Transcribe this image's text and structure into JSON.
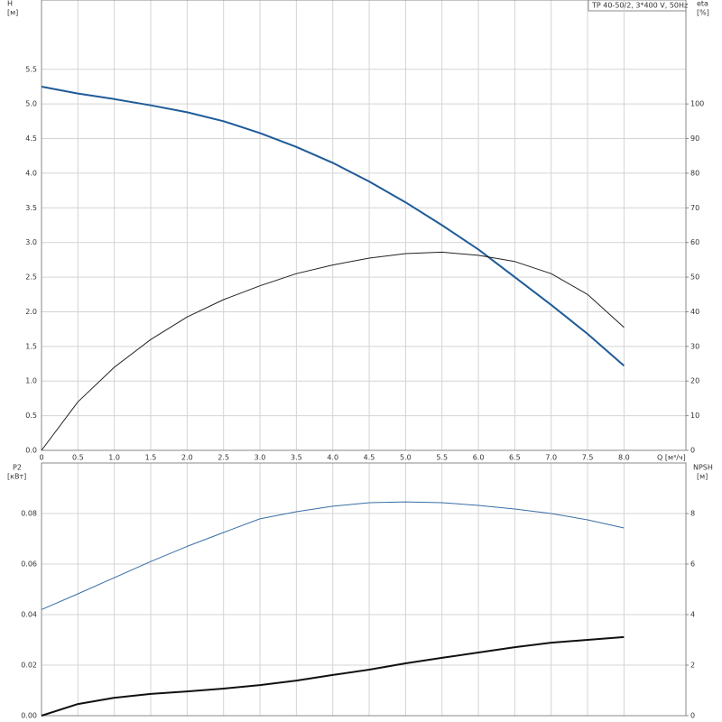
{
  "chart_data": [
    {
      "type": "line",
      "title": "TP 40-50/2, 3*400 V, 50Hz",
      "x_label": "Q [м³/ч]",
      "y_label": "H",
      "y_unit": "[м]",
      "y2_label": "eta",
      "y2_unit": "[%]",
      "x": [
        0,
        0.5,
        1.0,
        1.5,
        2.0,
        2.5,
        3.0,
        3.5,
        4.0,
        4.5,
        5.0,
        5.5,
        6.0,
        6.5,
        7.0,
        7.5,
        8.0
      ],
      "series": [
        {
          "color": "#1f5b98",
          "width": 2,
          "values": [
            5.25,
            5.15,
            5.07,
            4.98,
            4.88,
            4.75,
            4.58,
            4.38,
            4.15,
            3.88,
            3.58,
            3.25,
            2.9,
            2.5,
            2.1,
            1.68,
            1.22
          ]
        },
        {
          "color": "#222222",
          "width": 1,
          "axis": "y2",
          "values": [
            0,
            14,
            24,
            32,
            38.5,
            43.5,
            47.5,
            51,
            53.5,
            55.5,
            56.8,
            57.2,
            56.3,
            54.5,
            51,
            45,
            35.5
          ]
        }
      ],
      "xlim": [
        0,
        8.85
      ],
      "xticks": [
        0,
        0.5,
        {
          "value": 1,
          "label": "1.0"
        },
        1.5,
        {
          "value": 2,
          "label": "2.0"
        },
        2.5,
        {
          "value": 3,
          "label": "3.0"
        },
        3.5,
        {
          "value": 4,
          "label": "4.0"
        },
        4.5,
        {
          "value": 5,
          "label": "5.0"
        },
        5.5,
        {
          "value": 6,
          "label": "6.0"
        },
        6.5,
        {
          "value": 7,
          "label": "7.0"
        },
        7.5,
        {
          "value": 8,
          "label": "8.0"
        }
      ],
      "ylim": [
        0,
        6.5
      ],
      "yticks": [
        {
          "value": 0,
          "label": "0.0"
        },
        0.5,
        {
          "value": 1,
          "label": "1.0"
        },
        1.5,
        {
          "value": 2,
          "label": "2.0"
        },
        2.5,
        {
          "value": 3,
          "label": "3.0"
        },
        3.5,
        {
          "value": 4,
          "label": "4.0"
        },
        4.5,
        {
          "value": 5,
          "label": "5.0"
        },
        5.5
      ],
      "y2lim": [
        0,
        130
      ],
      "y2ticks": [
        0,
        10,
        20,
        30,
        40,
        50,
        60,
        70,
        80,
        90,
        100
      ],
      "grid": true
    },
    {
      "type": "line",
      "y_label": "P2",
      "y_unit": "[кВт]",
      "y2_label": "NPSH",
      "y2_unit": "[м]",
      "x": [
        0,
        0.5,
        1.0,
        1.5,
        2.0,
        2.5,
        3.0,
        3.5,
        4.0,
        4.5,
        5.0,
        5.5,
        6.0,
        6.5,
        7.0,
        7.5,
        8.0
      ],
      "series": [
        {
          "color": "#3a6ea5",
          "width": 1,
          "values": [
            0.042,
            0.0482,
            0.0546,
            0.061,
            0.067,
            0.0725,
            0.0779,
            0.0807,
            0.0829,
            0.0843,
            0.0846,
            0.0843,
            0.0832,
            0.0818,
            0.08,
            0.0775,
            0.0743
          ]
        },
        {
          "color": "#111111",
          "width": 2,
          "axis": "y2",
          "values": [
            0,
            0.46,
            0.71,
            0.86,
            0.96,
            1.07,
            1.21,
            1.39,
            1.61,
            1.82,
            2.07,
            2.29,
            2.5,
            2.71,
            2.89,
            3.0,
            3.11
          ]
        }
      ],
      "xlim": [
        0,
        8.85
      ],
      "ylim": [
        0,
        0.1
      ],
      "yticks": [
        {
          "value": 0,
          "label": "0.00"
        },
        {
          "value": 0.02,
          "label": "0.02"
        },
        {
          "value": 0.04,
          "label": "0.04"
        },
        {
          "value": 0.06,
          "label": "0.06"
        },
        {
          "value": 0.08,
          "label": "0.08"
        }
      ],
      "y2lim": [
        0,
        10
      ],
      "y2ticks": [
        0,
        2,
        4,
        6,
        8
      ],
      "grid": true
    }
  ]
}
